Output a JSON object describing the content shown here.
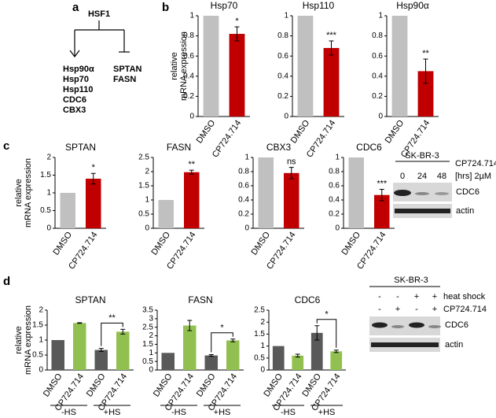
{
  "panel_labels": [
    "a",
    "b",
    "c",
    "d"
  ],
  "diagram": {
    "root": "HSF1",
    "activated": [
      "Hsp90α",
      "Hsp70",
      "Hsp110",
      "CDC6",
      "CBX3"
    ],
    "repressed": [
      "SPTAN",
      "FASN"
    ]
  },
  "blot_c": {
    "cell_line": "SK-BR-3",
    "treatment": "CP724.714",
    "unit": "[hrs] 2µM",
    "lanes": [
      "0",
      "24",
      "48"
    ],
    "bands": [
      "CDC6",
      "actin"
    ]
  },
  "blot_d": {
    "cell_line": "SK-BR-3",
    "rows": [
      {
        "name": "heat shock",
        "lanes": [
          "-",
          "-",
          "+",
          "+"
        ]
      },
      {
        "name": "CP724.714",
        "lanes": [
          "-",
          "+",
          "-",
          "+"
        ]
      }
    ],
    "bands": [
      "CDC6",
      "actin"
    ]
  },
  "chart_data": [
    {
      "type": "bar",
      "title": "Hsp70",
      "ylabel": [
        "relative",
        "mRNA expression"
      ],
      "categories": [
        "DMSO",
        "CP724.714"
      ],
      "values": [
        1,
        0.82
      ],
      "errors": [
        null,
        0.07
      ],
      "colors": [
        "#c0c0c0",
        "#c00000"
      ],
      "annotations": [
        null,
        "*"
      ],
      "ylim": [
        0,
        1
      ],
      "yticks": [
        0,
        0.2,
        0.4,
        0.6,
        0.8,
        1
      ]
    },
    {
      "type": "bar",
      "title": "Hsp110",
      "categories": [
        "DMSO",
        "CP724.714"
      ],
      "values": [
        1,
        0.68
      ],
      "errors": [
        null,
        0.07
      ],
      "colors": [
        "#c0c0c0",
        "#c00000"
      ],
      "annotations": [
        null,
        "***"
      ],
      "ylim": [
        0,
        1
      ],
      "yticks": [
        0,
        0.2,
        0.4,
        0.6,
        0.8,
        1
      ]
    },
    {
      "type": "bar",
      "title": "Hsp90α",
      "categories": [
        "DMSO",
        "CP724.714"
      ],
      "values": [
        1,
        0.45
      ],
      "errors": [
        null,
        0.12
      ],
      "colors": [
        "#c0c0c0",
        "#c00000"
      ],
      "annotations": [
        null,
        "**"
      ],
      "ylim": [
        0,
        1
      ],
      "yticks": [
        0,
        0.2,
        0.4,
        0.6,
        0.8,
        1
      ]
    },
    {
      "type": "bar",
      "title": "SPTAN",
      "ylabel": [
        "relative",
        "mRNA expression"
      ],
      "categories": [
        "DMSO",
        "CP724.714"
      ],
      "values": [
        1,
        1.4
      ],
      "errors": [
        null,
        0.15
      ],
      "colors": [
        "#c0c0c0",
        "#c00000"
      ],
      "annotations": [
        null,
        "*"
      ],
      "ylim": [
        0,
        2
      ],
      "yticks": [
        0,
        0.5,
        1,
        1.5,
        2
      ]
    },
    {
      "type": "bar",
      "title": "FASN",
      "categories": [
        "DMSO",
        "CP724.714"
      ],
      "values": [
        1,
        1.98
      ],
      "errors": [
        null,
        0.07
      ],
      "colors": [
        "#c0c0c0",
        "#c00000"
      ],
      "annotations": [
        null,
        "**"
      ],
      "ylim": [
        0,
        2.5
      ],
      "yticks": [
        0,
        0.5,
        1,
        1.5,
        2,
        2.5
      ]
    },
    {
      "type": "bar",
      "title": "CBX3",
      "categories": [
        "DMSO",
        "CP724.714"
      ],
      "values": [
        1,
        0.78
      ],
      "errors": [
        null,
        0.08
      ],
      "colors": [
        "#c0c0c0",
        "#c00000"
      ],
      "annotations": [
        null,
        "ns"
      ],
      "ylim": [
        0,
        1
      ],
      "yticks": [
        0,
        0.2,
        0.4,
        0.6,
        0.8,
        1
      ]
    },
    {
      "type": "bar",
      "title": "CDC6",
      "categories": [
        "DMSO",
        "CP724.714"
      ],
      "values": [
        1,
        0.47
      ],
      "errors": [
        null,
        0.08
      ],
      "colors": [
        "#c0c0c0",
        "#c00000"
      ],
      "annotations": [
        null,
        "***"
      ],
      "ylim": [
        0,
        1
      ],
      "yticks": [
        0,
        0.2,
        0.4,
        0.6,
        0.8,
        1
      ]
    },
    {
      "type": "bar",
      "title": "SPTAN",
      "ylabel": [
        "relative",
        "mRNA expression"
      ],
      "categories": [
        "DMSO",
        "CP724.714",
        "DMSO",
        "CP724.714"
      ],
      "groups": [
        "-HS",
        "+HS"
      ],
      "values": [
        1,
        1.57,
        0.67,
        1.28
      ],
      "errors": [
        null,
        0.01,
        0.05,
        0.08
      ],
      "colors": [
        "#595959",
        "#92c050",
        "#595959",
        "#92c050"
      ],
      "annotations": [
        null,
        null,
        null,
        "**"
      ],
      "annotation_style": "bracket",
      "ylim": [
        0,
        2
      ],
      "yticks": [
        0,
        0.5,
        1,
        1.5,
        2
      ]
    },
    {
      "type": "bar",
      "title": "FASN",
      "categories": [
        "DMSO",
        "CP724.714",
        "DMSO",
        "CP724.714"
      ],
      "groups": [
        "-HS",
        "+HS"
      ],
      "values": [
        1,
        2.6,
        0.85,
        1.73
      ],
      "errors": [
        null,
        0.3,
        0.05,
        0.08
      ],
      "colors": [
        "#595959",
        "#92c050",
        "#595959",
        "#92c050"
      ],
      "annotations": [
        null,
        null,
        null,
        "*"
      ],
      "annotation_style": "bracket",
      "ylim": [
        0,
        3.5
      ],
      "yticks": [
        0,
        0.5,
        1,
        1.5,
        2,
        2.5,
        3,
        3.5
      ]
    },
    {
      "type": "bar",
      "title": "CDC6",
      "categories": [
        "DMSO",
        "CP724.714",
        "DMSO",
        "CP724.714"
      ],
      "groups": [
        "-HS",
        "+HS"
      ],
      "values": [
        1,
        0.6,
        1.55,
        0.78
      ],
      "errors": [
        null,
        0.06,
        0.3,
        0.05
      ],
      "colors": [
        "#595959",
        "#92c050",
        "#595959",
        "#92c050"
      ],
      "annotations": [
        null,
        null,
        null,
        "*"
      ],
      "annotation_style": "bracket",
      "ylim": [
        0,
        2.5
      ],
      "yticks": [
        0,
        0.5,
        1,
        1.5,
        2,
        2.5
      ]
    }
  ]
}
